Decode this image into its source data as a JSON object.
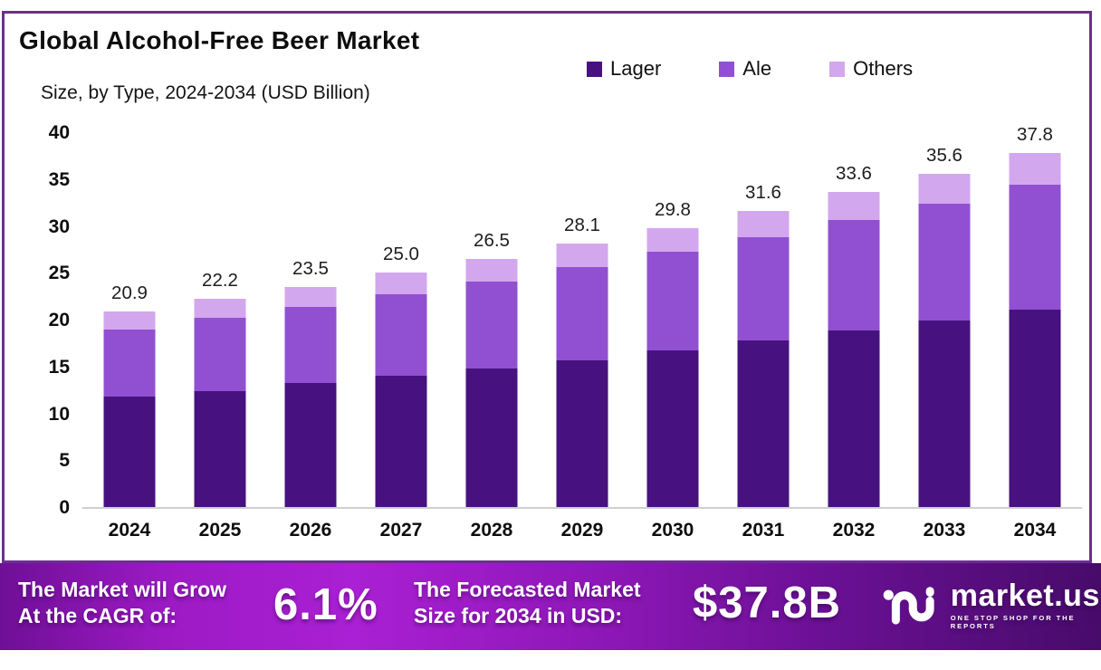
{
  "header": {
    "title": "Global Alcohol-Free Beer Market",
    "subtitle": "Size, by Type, 2024-2034 (USD Billion)"
  },
  "frame": {
    "border_color": "#6C2E92"
  },
  "chart_data": {
    "type": "bar",
    "stacked": true,
    "title": "Global Alcohol-Free Beer Market Size, by Type, 2024-2034 (USD Billion)",
    "categories": [
      "2024",
      "2025",
      "2026",
      "2027",
      "2028",
      "2029",
      "2030",
      "2031",
      "2032",
      "2033",
      "2034"
    ],
    "series": [
      {
        "name": "Lager",
        "color": "#47127F",
        "values": [
          11.8,
          12.4,
          13.2,
          14.0,
          14.8,
          15.7,
          16.7,
          17.8,
          18.8,
          19.9,
          21.1
        ]
      },
      {
        "name": "Ale",
        "color": "#9150D2",
        "values": [
          7.1,
          7.8,
          8.2,
          8.7,
          9.3,
          9.9,
          10.5,
          11.0,
          11.8,
          12.5,
          13.3
        ]
      },
      {
        "name": "Others",
        "color": "#D3A7EE",
        "values": [
          2.0,
          2.0,
          2.1,
          2.3,
          2.4,
          2.5,
          2.6,
          2.8,
          3.0,
          3.2,
          3.4
        ]
      }
    ],
    "totals": [
      "20.9",
      "22.2",
      "23.5",
      "25.0",
      "26.5",
      "28.1",
      "29.8",
      "31.6",
      "33.6",
      "35.6",
      "37.8"
    ],
    "xlabel": "",
    "ylabel": "",
    "ylim": [
      0,
      40
    ],
    "yticks": [
      0,
      5,
      10,
      15,
      20,
      25,
      30,
      35,
      40
    ],
    "grid": false,
    "legend_position": "top-right"
  },
  "legend": [
    {
      "label": "Lager"
    },
    {
      "label": "Ale"
    },
    {
      "label": "Others"
    }
  ],
  "banner": {
    "cagr_label": "The Market will Grow\nAt the CAGR of:",
    "cagr_value": "6.1%",
    "forecast_label": "The Forecasted Market\nSize for 2034 in USD:",
    "forecast_value": "$37.8B",
    "logo_text": "market.us",
    "logo_tagline": "ONE STOP SHOP FOR THE REPORTS"
  }
}
